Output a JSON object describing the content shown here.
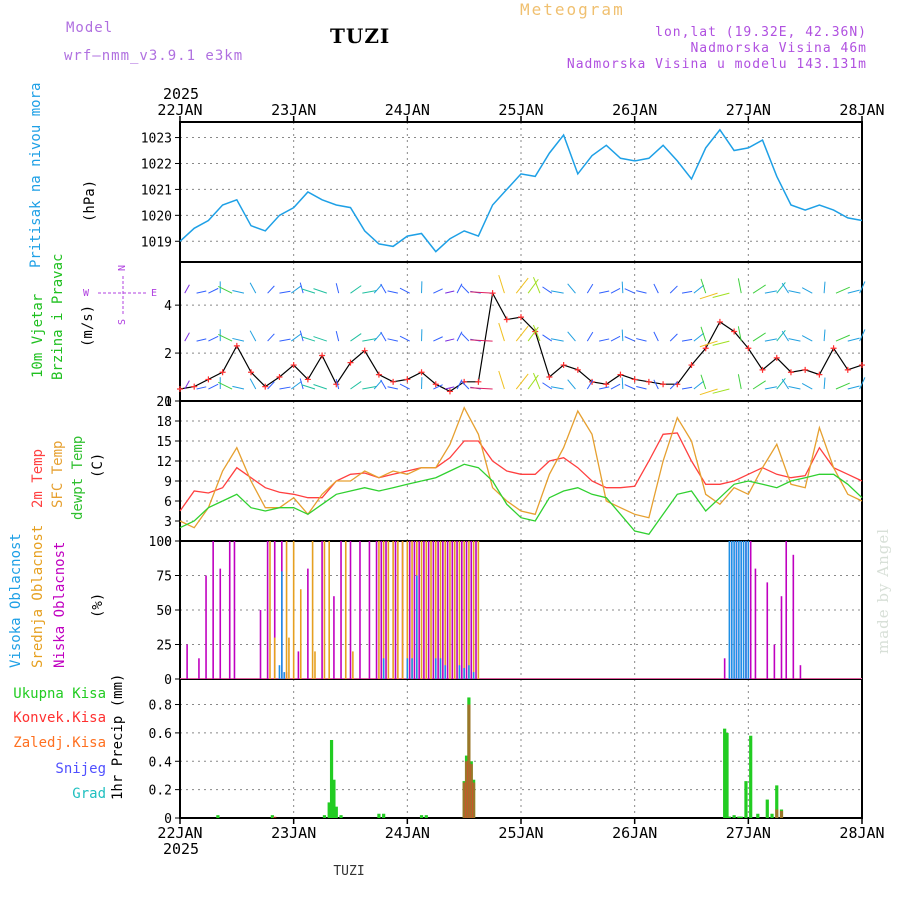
{
  "header": {
    "model_label": "Model",
    "model_name": "wrf—nmm_v3.9.1  e3km",
    "station": "TUZI",
    "meteogram": "Meteogram",
    "lonlat": "lon,lat (19.32E, 42.36N)",
    "alt": "Nadmorska Visina 46m",
    "alt_model": "Nadmorska Visina u modelu 143.131m",
    "year_top": "2025",
    "year_bottom": "2025",
    "footer_station": "TUZI",
    "watermark": "made by Angel"
  },
  "colors": {
    "pressure": "#1ea0e6",
    "wind_speed": "#000000",
    "wind_marker": "#ff3030",
    "t2m": "#ff4040",
    "sfc": "#e6a030",
    "dew": "#30d030",
    "low_cloud": "#c000c0",
    "mid_cloud": "#e6a020",
    "high_cloud": "#1e90e6",
    "total_precip": "#22cc22",
    "conv_precip": "#ff3030",
    "frz_precip": "#ff7020",
    "snow": "#5050ff",
    "hail": "#20c0c0",
    "label_purple": "#b040e0"
  },
  "labels": {
    "pressure": "Pritisak na nivou mora",
    "pressure_unit": "(hPa)",
    "wind1": "10m Vjetar",
    "wind2": "Brzina i Pravac",
    "wind_unit": "(m/s)",
    "wind_compass_n": "N",
    "wind_compass_s": "S",
    "wind_compass_w": "W",
    "wind_compass_e": "E",
    "temp_2m": "2m Temp",
    "temp_sfc": "SFC Temp",
    "temp_dew": "dewpt Temp",
    "temp_unit": "(C)",
    "cloud_high": "Visoka Oblacnost",
    "cloud_mid": "Srednja Oblacnost",
    "cloud_low": "Niska Oblacnost",
    "cloud_unit": "(%)",
    "precip_total": "Ukupna Kisa",
    "precip_conv": "Konvek.Kisa",
    "precip_frz": "Zaledj.Kisa",
    "precip_snow": "Snijeg",
    "precip_hail": "Grad",
    "precip_unit": "1hr Precip (mm)"
  },
  "chart_data": [
    {
      "type": "line",
      "title": "Pritisak na nivou mora",
      "ylabel": "hPa",
      "x_unit": "hours since 22JAN 00UTC",
      "x_ticks": [
        "22JAN",
        "23JAN",
        "24JAN",
        "25JAN",
        "26JAN",
        "27JAN",
        "28JAN"
      ],
      "ylim": [
        1018.2,
        1023.6
      ],
      "yticks": [
        1019,
        1020,
        1021,
        1022,
        1023
      ],
      "series": [
        {
          "name": "pressure",
          "x": [
            0,
            3,
            6,
            9,
            12,
            15,
            18,
            21,
            24,
            27,
            30,
            33,
            36,
            39,
            42,
            45,
            48,
            51,
            54,
            57,
            60,
            63,
            66,
            69,
            72,
            75,
            78,
            81,
            84,
            87,
            90,
            93,
            96,
            99,
            102,
            105,
            108,
            111,
            114,
            117,
            120,
            123,
            126,
            129,
            132,
            135,
            138,
            141,
            144
          ],
          "y": [
            1019.0,
            1019.5,
            1019.8,
            1020.4,
            1020.6,
            1019.6,
            1019.4,
            1020.0,
            1020.3,
            1020.9,
            1020.6,
            1020.4,
            1020.3,
            1019.4,
            1018.9,
            1018.8,
            1019.2,
            1019.3,
            1018.6,
            1019.1,
            1019.4,
            1019.2,
            1020.4,
            1021.0,
            1021.6,
            1021.5,
            1022.4,
            1023.1,
            1021.6,
            1022.3,
            1022.7,
            1022.2,
            1022.1,
            1022.2,
            1022.7,
            1022.1,
            1021.4,
            1022.6,
            1023.3,
            1022.5,
            1022.6,
            1022.9,
            1021.5,
            1020.4,
            1020.2,
            1020.4,
            1020.2,
            1019.9,
            1019.8
          ]
        }
      ]
    },
    {
      "type": "line",
      "title": "10m Vjetar Brzina i Pravac",
      "ylabel": "m/s",
      "ylim": [
        0,
        5.8
      ],
      "yticks": [
        0,
        2,
        4
      ],
      "series": [
        {
          "name": "wind speed",
          "x": [
            0,
            3,
            6,
            9,
            12,
            15,
            18,
            21,
            24,
            27,
            30,
            33,
            36,
            39,
            42,
            45,
            48,
            51,
            54,
            57,
            60,
            63,
            66,
            69,
            72,
            75,
            78,
            81,
            84,
            87,
            90,
            93,
            96,
            99,
            102,
            105,
            108,
            111,
            114,
            117,
            120,
            123,
            126,
            129,
            132,
            135,
            138,
            141,
            144
          ],
          "y": [
            0.5,
            0.6,
            0.9,
            1.2,
            2.3,
            1.2,
            0.6,
            1.0,
            1.5,
            0.9,
            1.9,
            0.7,
            1.6,
            2.1,
            1.1,
            0.8,
            0.9,
            1.2,
            0.7,
            0.4,
            0.8,
            0.8,
            4.5,
            3.4,
            3.5,
            2.9,
            1.0,
            1.5,
            1.3,
            0.8,
            0.7,
            1.1,
            0.9,
            0.8,
            0.7,
            0.7,
            1.5,
            2.2,
            3.3,
            2.9,
            2.2,
            1.3,
            1.8,
            1.2,
            1.3,
            1.1,
            2.2,
            1.3,
            1.5
          ]
        }
      ]
    },
    {
      "type": "line",
      "title": "2m / SFC / dewpt Temp",
      "ylabel": "C",
      "ylim": [
        0,
        21
      ],
      "yticks": [
        0,
        3,
        6,
        9,
        12,
        15,
        18,
        21
      ],
      "series": [
        {
          "name": "2m Temp",
          "x": [
            0,
            3,
            6,
            9,
            12,
            15,
            18,
            21,
            24,
            27,
            30,
            33,
            36,
            39,
            42,
            45,
            48,
            51,
            54,
            57,
            60,
            63,
            66,
            69,
            72,
            75,
            78,
            81,
            84,
            87,
            90,
            93,
            96,
            99,
            102,
            105,
            108,
            111,
            114,
            117,
            120,
            123,
            126,
            129,
            132,
            135,
            138,
            141,
            144
          ],
          "y": [
            4.5,
            7.5,
            7.2,
            8.0,
            11.0,
            9.5,
            8.0,
            7.3,
            7.0,
            6.5,
            6.5,
            9.0,
            10.0,
            10.2,
            9.5,
            10.0,
            10.5,
            11.0,
            11.0,
            12.5,
            15.0,
            15.0,
            12.0,
            10.5,
            10.0,
            10.0,
            12.0,
            12.5,
            11.0,
            9.0,
            8.0,
            8.0,
            8.2,
            12.0,
            16.0,
            16.2,
            12.0,
            8.5,
            8.5,
            9.0,
            10.0,
            11.0,
            10.0,
            9.5,
            9.8,
            14.0,
            11.0,
            10.0,
            9.0
          ]
        },
        {
          "name": "SFC Temp",
          "x": [
            0,
            3,
            6,
            9,
            12,
            15,
            18,
            21,
            24,
            27,
            30,
            33,
            36,
            39,
            42,
            45,
            48,
            51,
            54,
            57,
            60,
            63,
            66,
            69,
            72,
            75,
            78,
            81,
            84,
            87,
            90,
            93,
            96,
            99,
            102,
            105,
            108,
            111,
            114,
            117,
            120,
            123,
            126,
            129,
            132,
            135,
            138,
            141,
            144
          ],
          "y": [
            3.0,
            2.0,
            5.0,
            10.5,
            14.0,
            9.0,
            5.0,
            5.0,
            6.5,
            4.0,
            7.0,
            9.0,
            9.0,
            10.5,
            9.5,
            10.5,
            10.0,
            11.0,
            11.0,
            14.5,
            20.0,
            16.0,
            8.0,
            6.0,
            4.5,
            4.0,
            10.0,
            14.0,
            19.5,
            16.0,
            6.0,
            5.0,
            4.0,
            3.5,
            12.0,
            18.5,
            15.0,
            7.0,
            5.5,
            8.0,
            7.0,
            11.0,
            14.5,
            8.5,
            8.0,
            17.0,
            11.0,
            7.0,
            6.0
          ]
        },
        {
          "name": "dewpt Temp",
          "x": [
            0,
            3,
            6,
            9,
            12,
            15,
            18,
            21,
            24,
            27,
            30,
            33,
            36,
            39,
            42,
            45,
            48,
            51,
            54,
            57,
            60,
            63,
            66,
            69,
            72,
            75,
            78,
            81,
            84,
            87,
            90,
            93,
            96,
            99,
            102,
            105,
            108,
            111,
            114,
            117,
            120,
            123,
            126,
            129,
            132,
            135,
            138,
            141,
            144
          ],
          "y": [
            2.0,
            3.0,
            5.0,
            6.0,
            7.0,
            5.0,
            4.5,
            5.0,
            5.0,
            4.0,
            5.5,
            7.0,
            7.5,
            8.0,
            7.5,
            8.0,
            8.5,
            9.0,
            9.5,
            10.5,
            11.5,
            11.0,
            9.0,
            5.5,
            3.5,
            3.0,
            6.5,
            7.5,
            8.0,
            7.0,
            6.5,
            4.0,
            1.5,
            1.0,
            4.0,
            7.0,
            7.5,
            4.5,
            6.5,
            8.5,
            9.0,
            8.5,
            8.0,
            9.0,
            9.5,
            10.0,
            10.0,
            8.5,
            6.5
          ]
        }
      ]
    },
    {
      "type": "bar",
      "title": "Oblacnost",
      "ylabel": "%",
      "ylim": [
        0,
        100
      ],
      "yticks": [
        0,
        25,
        50,
        75,
        100
      ],
      "series": [
        {
          "name": "Niska Oblacnost",
          "x": [
            1.5,
            4,
            5.5,
            7,
            8.5,
            10.5,
            11.5,
            17,
            18.5,
            20,
            21.5,
            22.5,
            25,
            27,
            30,
            32.5,
            34,
            36,
            38,
            40,
            41.5,
            42.5,
            43.5,
            45.5,
            47,
            48.5,
            49.5,
            50.5,
            51.5,
            52.5,
            53.5,
            54.5,
            55.5,
            56.5,
            57.5,
            58.5,
            59.5,
            60.5,
            61.5,
            62.5,
            115,
            116.5,
            117.5,
            118.5,
            119.5,
            120.5,
            121.5,
            124,
            125.5,
            127,
            128,
            129.5,
            131
          ],
          "y": [
            25,
            15,
            75,
            100,
            80,
            100,
            100,
            50,
            100,
            100,
            100,
            5,
            20,
            80,
            100,
            60,
            100,
            100,
            100,
            100,
            100,
            100,
            100,
            100,
            100,
            100,
            100,
            100,
            100,
            100,
            100,
            100,
            100,
            100,
            100,
            100,
            100,
            100,
            100,
            100,
            15,
            100,
            100,
            100,
            100,
            100,
            80,
            70,
            25,
            60,
            100,
            90,
            10
          ]
        },
        {
          "name": "Srednja Oblacnost",
          "x": [
            19,
            20,
            22.5,
            23,
            24,
            25.5,
            28,
            28.5,
            30.5,
            31.5,
            35,
            36.5,
            42,
            43,
            44,
            45,
            46,
            47,
            48,
            49,
            50,
            51,
            52,
            53,
            54,
            55,
            56,
            57,
            58,
            59,
            60,
            61,
            62,
            63
          ],
          "y": [
            100,
            30,
            100,
            30,
            100,
            65,
            100,
            20,
            100,
            100,
            100,
            20,
            100,
            100,
            100,
            100,
            100,
            100,
            100,
            100,
            100,
            100,
            100,
            100,
            100,
            100,
            100,
            100,
            100,
            100,
            100,
            100,
            100,
            100
          ]
        },
        {
          "name": "Visoka Oblacnost",
          "x": [
            21,
            21.5,
            22,
            43,
            48,
            49,
            50,
            54,
            55,
            56,
            59,
            60,
            61,
            62,
            116,
            116.5,
            117,
            117.5,
            118,
            118.5,
            119,
            119.5,
            120
          ],
          "y": [
            10,
            78,
            5,
            15,
            15,
            15,
            75,
            15,
            15,
            10,
            10,
            8,
            10,
            5,
            100,
            100,
            100,
            100,
            100,
            100,
            100,
            100,
            100
          ]
        }
      ]
    },
    {
      "type": "bar",
      "title": "1hr Precip",
      "ylabel": "mm",
      "ylim": [
        0,
        0.98
      ],
      "yticks": [
        0,
        0.2,
        0.4,
        0.6,
        0.8
      ],
      "series": [
        {
          "name": "Ukupna Kisa",
          "x": [
            8,
            19.5,
            30.5,
            31.5,
            32,
            32.5,
            33,
            34,
            42,
            43,
            51,
            52,
            60,
            60.5,
            61,
            61.5,
            62,
            115,
            115.5,
            116,
            117,
            118,
            118.5,
            119.5,
            120.5,
            122,
            124,
            125,
            126,
            127
          ],
          "y": [
            0.02,
            0.02,
            0.02,
            0.11,
            0.55,
            0.27,
            0.08,
            0.02,
            0.03,
            0.03,
            0.02,
            0.02,
            0.26,
            0.44,
            0.85,
            0.4,
            0.27,
            0.63,
            0.6,
            0.01,
            0.02,
            0.01,
            0.01,
            0.26,
            0.58,
            0.03,
            0.13,
            0.03,
            0.23,
            0.06
          ]
        },
        {
          "name": "Konvek.Kisa",
          "x": [
            20,
            60,
            60.5,
            61,
            61.5,
            62,
            126,
            127
          ],
          "y": [
            0.01,
            0.25,
            0.4,
            0.8,
            0.38,
            0.25,
            0.06,
            0.05
          ]
        },
        {
          "name": "Zaledj.Kisa",
          "x": [],
          "y": []
        },
        {
          "name": "Snijeg",
          "x": [],
          "y": []
        },
        {
          "name": "Grad",
          "x": [],
          "y": []
        }
      ]
    }
  ]
}
